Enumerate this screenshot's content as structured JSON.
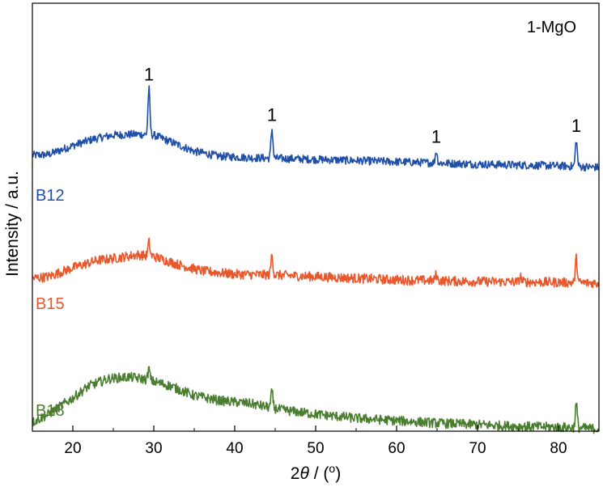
{
  "chart_data": {
    "type": "line",
    "xlabel": "2θ / (°)",
    "xlabel_parts": {
      "prefix": "2",
      "theta": "θ",
      "suffix": " / (",
      "deg": "o",
      "close": ")"
    },
    "ylabel": "Intensity / a.u.",
    "xlim": [
      15,
      85
    ],
    "xticks": [
      20,
      30,
      40,
      50,
      60,
      70,
      80
    ],
    "yticks_shown": false,
    "legend_title": "1-MgO",
    "peak_marker": "1",
    "peak_positions": [
      29.4,
      44.6,
      64.9,
      82.2
    ],
    "series": [
      {
        "name": "B12",
        "color": "#1f4fa6",
        "profile": [
          [
            15,
            23
          ],
          [
            17,
            24
          ],
          [
            20,
            35
          ],
          [
            22.5,
            43
          ],
          [
            25,
            48
          ],
          [
            28,
            49
          ],
          [
            30,
            48
          ],
          [
            32,
            40
          ],
          [
            35,
            28
          ],
          [
            38,
            22
          ],
          [
            42,
            20
          ],
          [
            50,
            18
          ],
          [
            60,
            15
          ],
          [
            70,
            12
          ],
          [
            80,
            10
          ],
          [
            85,
            8
          ]
        ],
        "peaks": [
          [
            29.4,
            57
          ],
          [
            44.6,
            36
          ],
          [
            64.9,
            15
          ],
          [
            82.2,
            33
          ]
        ],
        "noise": 5
      },
      {
        "name": "B15",
        "color": "#e8582c",
        "profile": [
          [
            15,
            3
          ],
          [
            17,
            5
          ],
          [
            20,
            16
          ],
          [
            23,
            25
          ],
          [
            26,
            29
          ],
          [
            28,
            32
          ],
          [
            30,
            30
          ],
          [
            33,
            20
          ],
          [
            36,
            12
          ],
          [
            40,
            8
          ],
          [
            45,
            7
          ],
          [
            50,
            5
          ],
          [
            60,
            1
          ],
          [
            70,
            -1
          ],
          [
            80,
            -2
          ],
          [
            85,
            -3
          ]
        ],
        "peaks": [
          [
            29.4,
            17
          ],
          [
            44.6,
            25
          ],
          [
            64.9,
            8
          ],
          [
            75.3,
            7
          ],
          [
            82.2,
            30
          ]
        ],
        "noise": 6
      },
      {
        "name": "B18",
        "color": "#4a7d2f",
        "profile": [
          [
            15,
            -40
          ],
          [
            17,
            -30
          ],
          [
            20,
            -10
          ],
          [
            22,
            5
          ],
          [
            24.5,
            14
          ],
          [
            27,
            16
          ],
          [
            29,
            13
          ],
          [
            32,
            5
          ],
          [
            35,
            -7
          ],
          [
            38,
            -13
          ],
          [
            42,
            -17
          ],
          [
            46,
            -25
          ],
          [
            50,
            -30
          ],
          [
            55,
            -35
          ],
          [
            60,
            -38
          ],
          [
            65,
            -41
          ],
          [
            70,
            -43
          ],
          [
            75,
            -45
          ],
          [
            80,
            -46
          ],
          [
            85,
            -48
          ]
        ],
        "peaks": [
          [
            29.4,
            14
          ],
          [
            44.6,
            20
          ],
          [
            82.2,
            30
          ]
        ],
        "noise": 6
      }
    ]
  }
}
